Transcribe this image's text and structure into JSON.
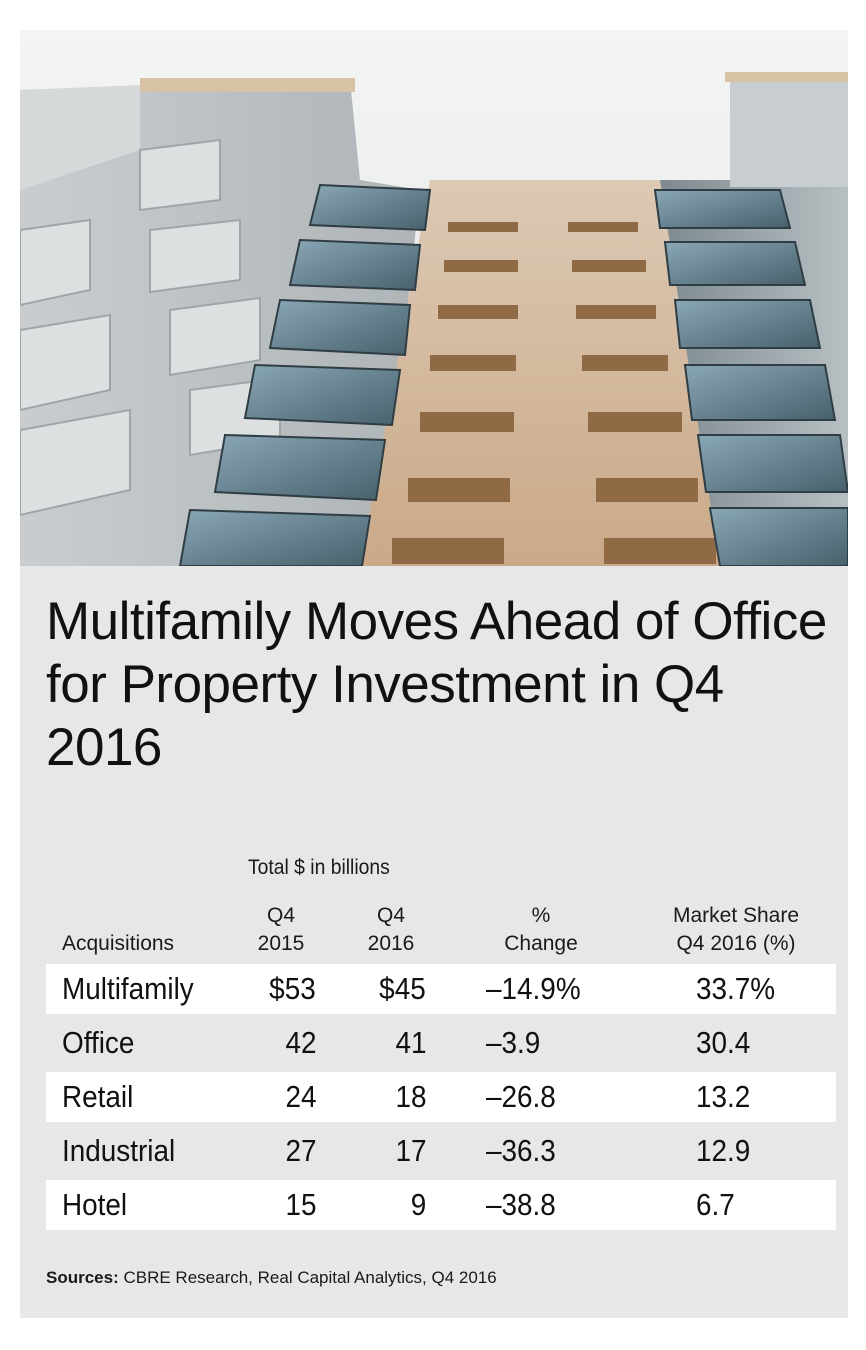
{
  "title": "Multifamily Moves Ahead of Office for Property Investment in Q4 2016",
  "source_label": "Sources:",
  "source_text": " CBRE Research, Real Capital Analytics, Q4 2016",
  "chart_data": {
    "type": "table",
    "title": "Multifamily Moves Ahead of Office for Property Investment in Q4 2016",
    "group_header": "Total $ in billions",
    "columns": [
      {
        "line1": "",
        "line2": "Acquisitions"
      },
      {
        "line1": "Q4",
        "line2": "2015"
      },
      {
        "line1": "Q4",
        "line2": "2016"
      },
      {
        "line1": "%",
        "line2": "Change"
      },
      {
        "line1": "Market Share",
        "line2": "Q4 2016 (%)"
      }
    ],
    "rows": [
      {
        "category": "Multifamily",
        "q4_2015": "$53",
        "q4_2016": "$45",
        "change": "–14.9%",
        "share": "33.7%"
      },
      {
        "category": "Office",
        "q4_2015": "42",
        "q4_2016": "41",
        "change": "–3.9",
        "share": "30.4"
      },
      {
        "category": "Retail",
        "q4_2015": "24",
        "q4_2016": "18",
        "change": "–26.8",
        "share": "13.2"
      },
      {
        "category": "Industrial",
        "q4_2015": "27",
        "q4_2016": "17",
        "change": "–36.3",
        "share": "12.9"
      },
      {
        "category": "Hotel",
        "q4_2015": "15",
        "q4_2016": "9",
        "change": "–38.8",
        "share": "6.7"
      }
    ]
  }
}
